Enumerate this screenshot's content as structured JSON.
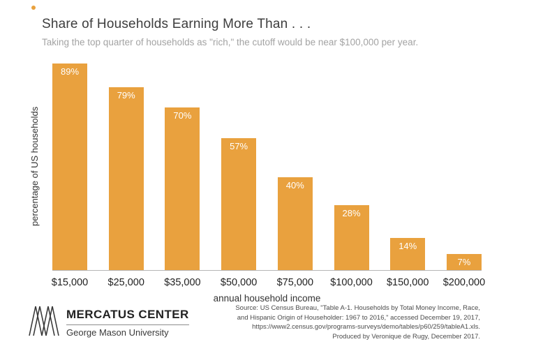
{
  "chart_data": {
    "type": "bar",
    "title": "Share of Households Earning More Than . . .",
    "subtitle": "Taking the top quarter of households as \"rich,\" the cutoff would be near $100,000 per year.",
    "categories": [
      "$15,000",
      "$25,000",
      "$35,000",
      "$50,000",
      "$75,000",
      "$100,000",
      "$150,000",
      "$200,000"
    ],
    "values": [
      89,
      79,
      70,
      57,
      40,
      28,
      14,
      7
    ],
    "value_labels": [
      "89%",
      "79%",
      "70%",
      "57%",
      "40%",
      "28%",
      "14%",
      "7%"
    ],
    "xlabel": "annual household income",
    "ylabel": "percentage of US households",
    "ylim": [
      0,
      90
    ],
    "grid": false,
    "legend": "none",
    "bar_color": "#E9A13E",
    "bar_label_color": "#FFFFFF"
  },
  "footer": {
    "brand_name": "MERCATUS CENTER",
    "university": "George Mason University",
    "source_lines": [
      "Source: US Census Bureau, \"Table A-1. Households by Total Money Income, Race,",
      "and Hispanic Origin of Householder: 1967 to 2016,\" accessed December 19, 2017,",
      "https://www2.census.gov/programs-surveys/demo/tables/p60/259/tableA1.xls.",
      "Produced by Veronique de Rugy, December 2017."
    ]
  }
}
